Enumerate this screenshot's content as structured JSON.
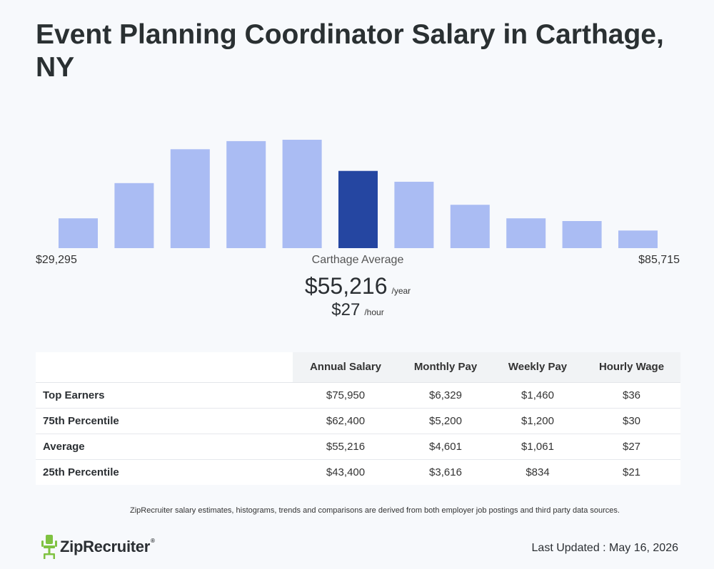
{
  "title": "Event Planning Coordinator Salary in Carthage, NY",
  "chart_data": {
    "type": "bar",
    "values": [
      22,
      48,
      73,
      79,
      80,
      57,
      49,
      32,
      22,
      20,
      13
    ],
    "highlight_index": 5,
    "colors": {
      "bar": "#aabcf3",
      "highlight": "#2546a1"
    },
    "min_label": "$29,295",
    "max_label": "$85,715",
    "center_label": "Carthage Average"
  },
  "average": {
    "annual": "$55,216",
    "annual_unit": "/year",
    "hourly": "$27",
    "hourly_unit": "/hour"
  },
  "table": {
    "headers": [
      "",
      "Annual Salary",
      "Monthly Pay",
      "Weekly Pay",
      "Hourly Wage"
    ],
    "rows": [
      {
        "label": "Top Earners",
        "annual": "$75,950",
        "monthly": "$6,329",
        "weekly": "$1,460",
        "hourly": "$36"
      },
      {
        "label": "75th Percentile",
        "annual": "$62,400",
        "monthly": "$5,200",
        "weekly": "$1,200",
        "hourly": "$30"
      },
      {
        "label": "Average",
        "annual": "$55,216",
        "monthly": "$4,601",
        "weekly": "$1,061",
        "hourly": "$27"
      },
      {
        "label": "25th Percentile",
        "annual": "$43,400",
        "monthly": "$3,616",
        "weekly": "$834",
        "hourly": "$21"
      }
    ]
  },
  "note": "ZipRecruiter salary estimates, histograms, trends and comparisons are derived from both employer job postings and third party data sources.",
  "logo": {
    "text": "ZipRecruiter",
    "tm": "®",
    "color": "#7fc241"
  },
  "updated": "Last Updated : May 16, 2026"
}
